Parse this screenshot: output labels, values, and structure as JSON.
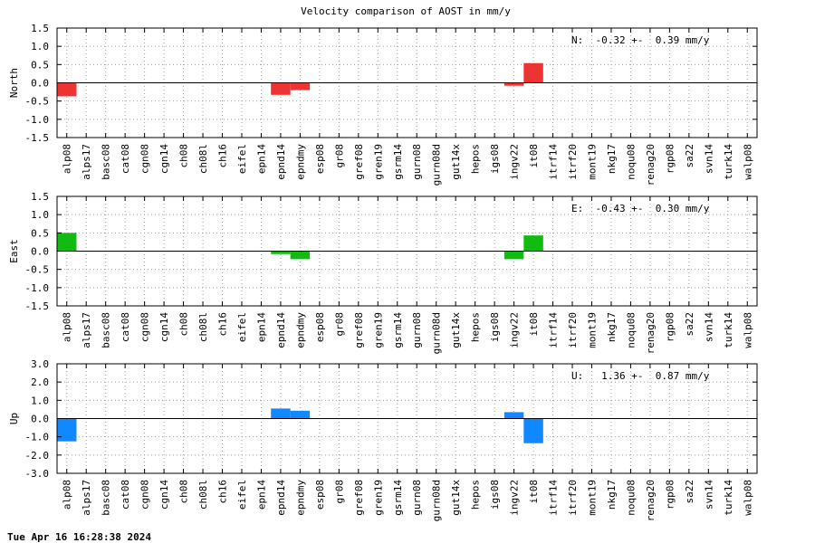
{
  "page": {
    "title": "Velocity comparison of AOST in mm/y",
    "timestamp": "Tue Apr 16 16:28:38 2024"
  },
  "chart_data": {
    "type": "bar",
    "title": "Velocity comparison of AOST in mm/y",
    "grid": true,
    "categories": [
      "alp08",
      "alps17",
      "basc08",
      "cat08",
      "cgn08",
      "cgn14",
      "ch08",
      "ch08l",
      "ch16",
      "eifel",
      "epn14",
      "epnd14",
      "epndmy",
      "esp08",
      "gr08",
      "gref08",
      "gren19",
      "gsrm14",
      "gurn08",
      "gurn08d",
      "gut14x",
      "hepos",
      "igs08",
      "ingv22",
      "it08",
      "itrf14",
      "itrf20",
      "mont19",
      "nkg17",
      "noqu08",
      "renag20",
      "rgp08",
      "sa22",
      "svn14",
      "turk14",
      "walp08"
    ],
    "panels": [
      {
        "ylabel": "North",
        "color": "#ee3333",
        "ylim": [
          -1.5,
          1.5
        ],
        "yticks": [
          "1.5",
          "1.0",
          "0.5",
          "0.0",
          "-0.5",
          "-1.0",
          "-1.5"
        ],
        "stat": "N:  -0.32 +-  0.39 mm/y",
        "values": [
          -0.37,
          null,
          null,
          null,
          null,
          null,
          null,
          null,
          null,
          null,
          null,
          -0.33,
          -0.2,
          null,
          null,
          null,
          null,
          null,
          null,
          null,
          null,
          null,
          null,
          -0.08,
          0.54,
          null,
          null,
          null,
          null,
          null,
          null,
          null,
          null,
          null,
          null,
          null
        ]
      },
      {
        "ylabel": "East",
        "color": "#11bb11",
        "ylim": [
          -1.5,
          1.5
        ],
        "yticks": [
          "1.5",
          "1.0",
          "0.5",
          "0.0",
          "-0.5",
          "-1.0",
          "-1.5"
        ],
        "stat": "E:  -0.43 +-  0.30 mm/y",
        "values": [
          0.5,
          null,
          null,
          null,
          null,
          null,
          null,
          null,
          null,
          null,
          null,
          -0.08,
          -0.22,
          null,
          null,
          null,
          null,
          null,
          null,
          null,
          null,
          null,
          null,
          -0.22,
          0.43,
          null,
          null,
          null,
          null,
          null,
          null,
          null,
          null,
          null,
          null,
          null
        ]
      },
      {
        "ylabel": "Up",
        "color": "#1188ff",
        "ylim": [
          -3.0,
          3.0
        ],
        "yticks": [
          "3.0",
          "2.0",
          "1.0",
          "0.0",
          "-1.0",
          "-2.0",
          "-3.0"
        ],
        "stat": "U:   1.36 +-  0.87 mm/y",
        "values": [
          -1.25,
          null,
          null,
          null,
          null,
          null,
          null,
          null,
          null,
          null,
          null,
          0.55,
          0.43,
          null,
          null,
          null,
          null,
          null,
          null,
          null,
          null,
          null,
          null,
          0.35,
          -1.35,
          null,
          null,
          null,
          null,
          null,
          null,
          null,
          null,
          null,
          null,
          null
        ]
      }
    ]
  }
}
